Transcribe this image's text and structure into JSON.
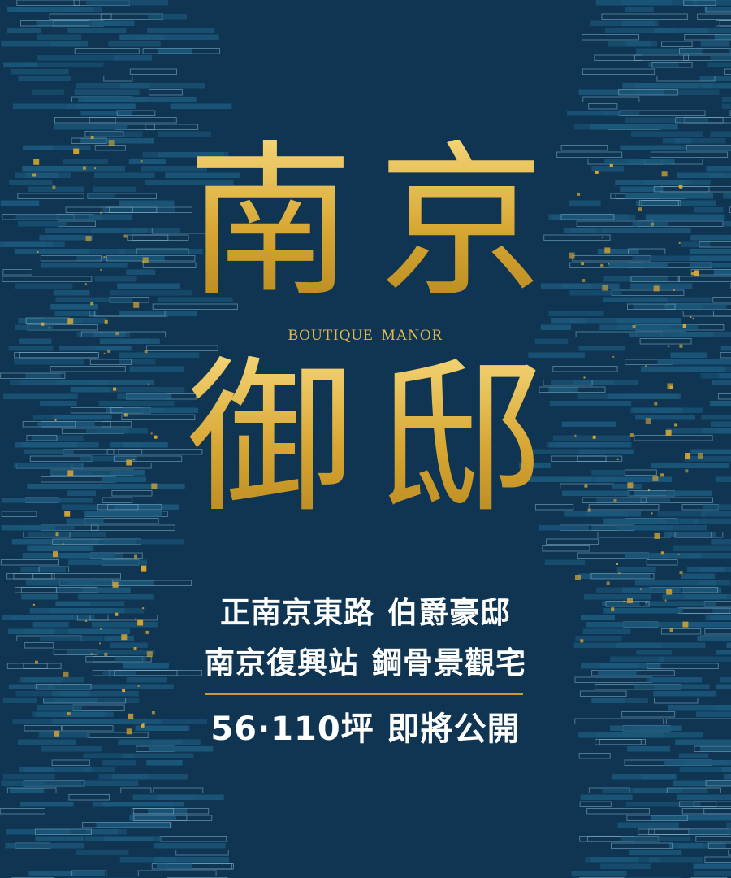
{
  "title_line_1": "南京",
  "subtitle_word_1": "BOUTIQUE",
  "subtitle_word_2": "MANOR",
  "title_line_2": "御邸",
  "slogans": [
    {
      "left": "正南京東路",
      "right": "伯爵豪邸"
    },
    {
      "left": "南京復興站",
      "right": "鋼骨景觀宅"
    },
    {
      "left": "56·110坪",
      "right": "即將公開"
    }
  ],
  "colors": {
    "background": "#0f3553",
    "gold": "#d7a632",
    "brick": "#1b587b",
    "text": "#ffffff"
  }
}
